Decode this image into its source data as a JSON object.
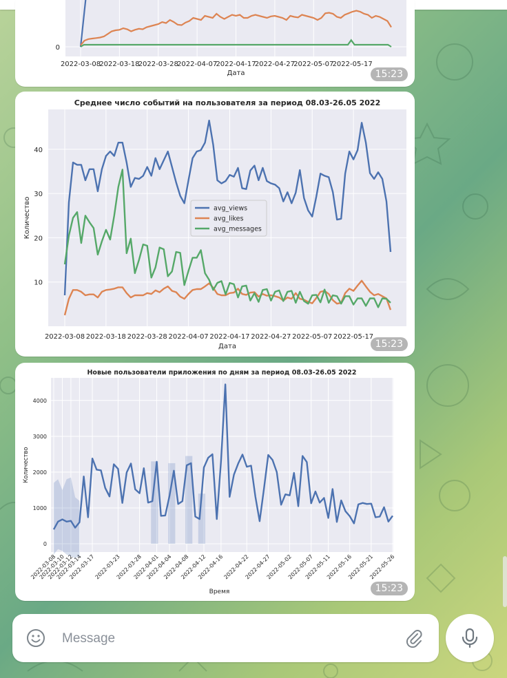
{
  "messages": [
    {
      "time": "15:23",
      "chart_data": {
        "type": "line",
        "xlabel": "Дата",
        "y_ticks": [
          0
        ],
        "x_ticks": [
          "2022-03-08",
          "2022-03-18",
          "2022-03-28",
          "2022-04-07",
          "2022-04-17",
          "2022-04-27",
          "2022-05-07",
          "2022-05-17"
        ],
        "series": [
          {
            "name": "blue",
            "color": "#4c72b0",
            "values": [
              0,
              700,
              1400,
              2300,
              3000
            ]
          },
          {
            "name": "orange",
            "color": "#dd8452",
            "values": [
              30,
              120,
              150,
              160,
              170,
              180,
              200,
              250,
              300,
              320,
              330,
              360,
              340,
              300,
              330,
              350,
              340,
              380,
              400,
              420,
              440,
              480,
              460,
              520,
              480,
              430,
              420,
              470,
              500,
              560,
              540,
              520,
              600,
              580,
              560,
              640,
              580,
              540,
              580,
              620,
              600,
              620,
              560,
              560,
              600,
              620,
              600,
              580,
              560,
              590,
              600,
              580,
              560,
              520,
              600,
              580,
              570,
              620,
              600,
              580,
              560,
              520,
              560,
              650,
              660,
              640,
              580,
              560,
              620,
              650,
              680,
              700,
              680,
              640,
              620,
              560,
              600,
              580,
              540,
              500,
              380
            ]
          },
          {
            "name": "green",
            "color": "#55a868",
            "values": [
              0,
              40,
              40,
              40,
              40,
              40,
              40,
              40,
              40,
              40,
              40,
              40,
              40,
              40,
              40,
              40,
              40,
              40,
              40,
              40,
              40,
              40,
              40,
              40,
              40,
              40,
              40,
              40,
              40,
              40,
              40,
              40,
              40,
              40,
              40,
              40,
              40,
              40,
              40,
              40,
              40,
              40,
              40,
              40,
              40,
              40,
              40,
              40,
              40,
              40,
              40,
              40,
              40,
              40,
              40,
              40,
              40,
              40,
              40,
              40,
              40,
              40,
              40,
              40,
              40,
              40,
              40,
              40,
              40,
              40,
              40,
              40,
              40,
              40,
              40,
              40,
              40,
              40,
              40,
              40,
              40,
              130,
              40,
              40,
              40,
              40,
              40,
              40,
              40,
              40,
              40,
              40,
              40,
              0
            ]
          }
        ]
      }
    },
    {
      "time": "15:23",
      "chart_data": {
        "type": "line",
        "title": "Среднее число событий на пользователя за период 08.03-26.05 2022",
        "xlabel": "Дата",
        "ylabel": "Количество",
        "ylim": [
          0,
          49
        ],
        "y_ticks": [
          10,
          20,
          30,
          40
        ],
        "x_ticks": [
          "2022-03-08",
          "2022-03-18",
          "2022-03-28",
          "2022-04-07",
          "2022-04-17",
          "2022-04-27",
          "2022-05-07",
          "2022-05-17"
        ],
        "legend": [
          "avg_views",
          "avg_likes",
          "avg_messages"
        ],
        "legend_position": "center",
        "series": [
          {
            "name": "avg_views",
            "color": "#4c72b0",
            "values": [
              7,
              28,
              37,
              36.5,
              36.5,
              33,
              35.5,
              35.5,
              30.5,
              35.5,
              38.5,
              39.5,
              38.5,
              41.5,
              41.5,
              37,
              31.5,
              33.5,
              33.3,
              34,
              36,
              34,
              38,
              35.5,
              37.5,
              39.5,
              36,
              32.5,
              29.5,
              27.8,
              33,
              38,
              39.5,
              39.8,
              41.5,
              46.5,
              41,
              33,
              32.3,
              32.8,
              34.2,
              33.8,
              35.8,
              31.2,
              31,
              35.2,
              36.3,
              33,
              35.8,
              32.8,
              32.3,
              32,
              31.2,
              28.2,
              30.3,
              27.8,
              30.2,
              35.3,
              29,
              26.2,
              24.8,
              29.3,
              34.5,
              34,
              33.7,
              30.3,
              24.1,
              24.3,
              34.5,
              39.5,
              37.7,
              39.8,
              46,
              41.5,
              34.6,
              33.3,
              34.8,
              33.3,
              28.2,
              16.8
            ]
          },
          {
            "name": "avg_likes",
            "color": "#dd8452",
            "values": [
              2.5,
              6.2,
              8.2,
              8.2,
              7.8,
              7,
              7.2,
              7.2,
              6.5,
              7.8,
              8.2,
              8.3,
              8.5,
              8.8,
              8.8,
              7.5,
              6.5,
              7,
              7,
              7,
              7.5,
              7.3,
              8.1,
              7.7,
              8.5,
              9,
              8,
              7.7,
              6.7,
              6.2,
              7.3,
              8.2,
              8.4,
              8.4,
              9,
              9.7,
              8.7,
              7.3,
              7,
              7,
              7.5,
              7.6,
              8.5,
              7.3,
              7.1,
              7.6,
              7.7,
              6.7,
              7.3,
              6.9,
              7,
              6.8,
              6.5,
              5.8,
              6.5,
              6.2,
              7.5,
              6.2,
              6,
              5.5,
              5.2,
              6.4,
              7.8,
              8,
              7.3,
              5.9,
              5.1,
              5.3,
              7.5,
              8.5,
              8,
              9.2,
              10.3,
              9,
              7.8,
              7,
              7.3,
              6.8,
              6.3,
              3.7
            ]
          },
          {
            "name": "avg_messages",
            "color": "#55a868",
            "values": [
              14,
              20.5,
              24.5,
              25.8,
              18.8,
              25,
              23.5,
              22.2,
              16.2,
              19.2,
              21.8,
              19.6,
              25,
              31.5,
              35.4,
              16.5,
              19.8,
              12,
              15,
              18.5,
              18.2,
              11,
              13.3,
              17.8,
              17.4,
              11.3,
              12.4,
              16.8,
              16.6,
              9.3,
              12.5,
              15.5,
              15.5,
              17.2,
              12,
              10.5,
              8.2,
              9.8,
              10.2,
              7.2,
              9.8,
              9.5,
              6.5,
              9,
              9.2,
              5.8,
              7.5,
              5.5,
              8.2,
              8.4,
              5.8,
              7.8,
              8.1,
              5.7,
              7.8,
              8,
              5.3,
              7.8,
              5.7,
              5.1,
              7,
              7.1,
              5.4,
              8.3,
              5.3,
              7,
              6.8,
              5.1,
              6.8,
              6.8,
              4.9,
              6.3,
              6.3,
              4.6,
              6.3,
              6.3,
              4.3,
              6.3,
              6.2,
              5.3
            ]
          }
        ]
      }
    },
    {
      "time": "15:23",
      "chart_data": {
        "type": "line",
        "title": "Новые пользователи приложения по дням за период 08.03-26.05 2022",
        "xlabel": "Время",
        "ylabel": "Количество",
        "ylim": [
          -230,
          4630
        ],
        "y_ticks": [
          0,
          1000,
          2000,
          3000,
          4000
        ],
        "x_ticks": [
          "2022-03-08",
          "2022-03-10",
          "2022-03-12",
          "2022-03-14",
          "2022-03-17",
          "2022-03-23",
          "2022-03-28",
          "2022-04-01",
          "2022-04-04",
          "2022-04-08",
          "2022-04-12",
          "2022-04-16",
          "2022-04-22",
          "2022-04-27",
          "2022-05-02",
          "2022-05-07",
          "2022-05-11",
          "2022-05-16",
          "2022-05-21",
          "2022-05-26"
        ],
        "series": [
          {
            "name": "new_users",
            "color": "#4c72b0",
            "values": [
              400,
              620,
              680,
              620,
              640,
              450,
              600,
              1880,
              740,
              2380,
              2070,
              2050,
              1560,
              1320,
              2220,
              2090,
              1140,
              1990,
              2240,
              1520,
              1410,
              2110,
              1150,
              1190,
              2290,
              780,
              790,
              1350,
              2040,
              1110,
              1190,
              2190,
              2250,
              760,
              690,
              2130,
              2400,
              2500,
              690,
              2320,
              4450,
              1310,
              1930,
              2240,
              2490,
              2150,
              2180,
              1320,
              630,
              1540,
              2480,
              2340,
              2000,
              1090,
              1380,
              1350,
              1980,
              1050,
              2450,
              2280,
              1130,
              1460,
              1150,
              1280,
              720,
              1530,
              610,
              1210,
              910,
              770,
              570,
              1100,
              1140,
              1110,
              1120,
              740,
              760,
              1020,
              620,
              780
            ]
          }
        ]
      }
    }
  ],
  "composer": {
    "placeholder": "Message",
    "icons": [
      "smile-icon",
      "paperclip-icon",
      "microphone-icon"
    ]
  }
}
